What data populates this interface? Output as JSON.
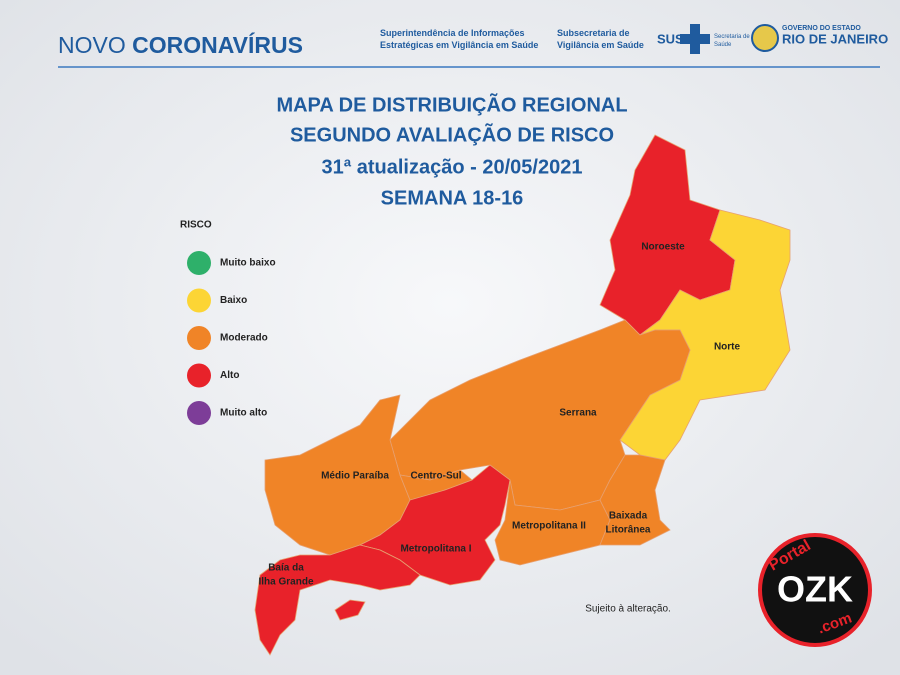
{
  "header": {
    "brand_light": "NOVO",
    "brand_bold": "CORONAVÍRUS",
    "org1": [
      "Superintendência de Informações",
      "Estratégicas em Vigilância em Saúde"
    ],
    "org2": [
      "Subsecretaria de",
      "Vigilância em Saúde"
    ],
    "sus": "SUS",
    "secretaria": [
      "Secretaria de",
      "Saúde"
    ],
    "gov": "GOVERNO DO ESTADO",
    "state": "RIO DE JANEIRO"
  },
  "title": [
    "MAPA DE DISTRIBUIÇÃO REGIONAL",
    "SEGUNDO AVALIAÇÃO DE RISCO",
    "31ª atualização - 20/05/2021",
    "SEMANA 18-16"
  ],
  "legend": {
    "title": "RISCO",
    "items": [
      {
        "label": "Muito baixo",
        "color": "#2eb06a"
      },
      {
        "label": "Baixo",
        "color": "#fcd535"
      },
      {
        "label": "Moderado",
        "color": "#f08427"
      },
      {
        "label": "Alto",
        "color": "#e8222a"
      },
      {
        "label": "Muito alto",
        "color": "#7d3d98"
      }
    ]
  },
  "regions": [
    {
      "name": [
        "Noroeste"
      ],
      "color": "#e8222a"
    },
    {
      "name": [
        "Norte"
      ],
      "color": "#fcd535"
    },
    {
      "name": [
        "Serrana"
      ],
      "color": "#f08427"
    },
    {
      "name": [
        "Médio Paraíba"
      ],
      "color": "#f08427"
    },
    {
      "name": [
        "Centro-Sul"
      ],
      "color": "#f08427"
    },
    {
      "name": [
        "Metropolitana I"
      ],
      "color": "#e8222a"
    },
    {
      "name": [
        "Metropolitana II"
      ],
      "color": "#f08427"
    },
    {
      "name": [
        "Baixada",
        "Litorânea"
      ],
      "color": "#f08427"
    },
    {
      "name": [
        "Baía da",
        "Ilha Grande"
      ],
      "color": "#e8222a"
    }
  ],
  "note": "Sujeito à alteração.",
  "watermark": {
    "top": "Portal",
    "main": "OZK",
    "bottom": ".com"
  }
}
